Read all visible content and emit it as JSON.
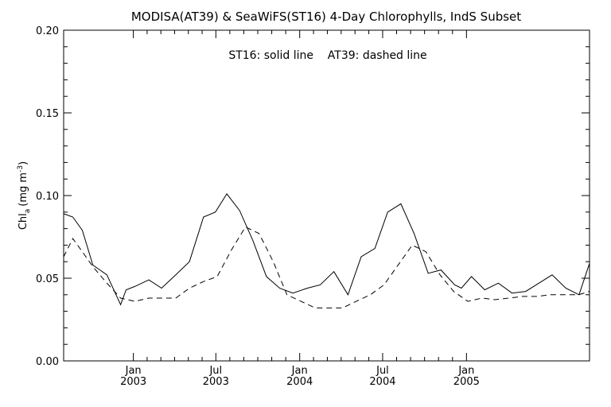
{
  "chart_data": {
    "type": "line",
    "title": "MODISA(AT39) & SeaWiFS(ST16) 4-Day Chlorophylls, IndS Subset",
    "annotation": "ST16: solid line    AT39: dashed line",
    "xlabel": "",
    "ylabel": "Chl",
    "ylabel_subscript": "a",
    "ylabel_units": "(mg m",
    "ylabel_units_sup": "-3",
    "ylabel_units_close": ")",
    "ylim": [
      0.0,
      0.2
    ],
    "yticks": [
      "0.00",
      "0.05",
      "0.10",
      "0.15",
      "0.20"
    ],
    "xlim": [
      "2002-08-01",
      "2005-09-28"
    ],
    "xticks": [
      {
        "date": "2003-01-01",
        "month": "Jan",
        "year": "2003"
      },
      {
        "date": "2003-07-01",
        "month": "Jul",
        "year": "2003"
      },
      {
        "date": "2004-01-01",
        "month": "Jan",
        "year": "2004"
      },
      {
        "date": "2004-07-01",
        "month": "Jul",
        "year": "2004"
      },
      {
        "date": "2005-01-01",
        "month": "Jan",
        "year": "2005"
      }
    ],
    "grid": false,
    "series": [
      {
        "name": "ST16",
        "style": "solid",
        "color": "#000000",
        "x": [
          "2002-08-01",
          "2002-08-21",
          "2002-09-11",
          "2002-10-04",
          "2002-11-04",
          "2002-12-04",
          "2002-12-16",
          "2003-01-04",
          "2003-02-04",
          "2003-03-04",
          "2003-04-04",
          "2003-05-04",
          "2003-06-04",
          "2003-06-30",
          "2003-07-25",
          "2003-08-22",
          "2003-09-20",
          "2003-10-20",
          "2003-11-18",
          "2003-12-17",
          "2004-01-18",
          "2004-02-15",
          "2004-03-16",
          "2004-04-16",
          "2004-05-15",
          "2004-06-14",
          "2004-07-12",
          "2004-08-10",
          "2004-09-08",
          "2004-10-09",
          "2004-11-06",
          "2004-12-06",
          "2004-12-21",
          "2005-01-12",
          "2005-02-10",
          "2005-03-12",
          "2005-04-11",
          "2005-05-11",
          "2005-06-09",
          "2005-07-08",
          "2005-08-07",
          "2005-09-05",
          "2005-09-28"
        ],
        "y": [
          0.089,
          0.087,
          0.079,
          0.058,
          0.052,
          0.034,
          0.043,
          0.045,
          0.049,
          0.044,
          0.052,
          0.06,
          0.087,
          0.09,
          0.101,
          0.091,
          0.073,
          0.051,
          0.044,
          0.041,
          0.044,
          0.046,
          0.054,
          0.04,
          0.063,
          0.068,
          0.09,
          0.095,
          0.077,
          0.053,
          0.055,
          0.046,
          0.044,
          0.051,
          0.043,
          0.047,
          0.041,
          0.042,
          0.047,
          0.052,
          0.044,
          0.04,
          0.059
        ]
      },
      {
        "name": "AT39",
        "style": "dashed",
        "color": "#000000",
        "x": [
          "2002-08-01",
          "2002-08-21",
          "2002-09-11",
          "2002-10-04",
          "2002-11-04",
          "2002-12-04",
          "2003-01-04",
          "2003-02-04",
          "2003-03-04",
          "2003-04-04",
          "2003-05-04",
          "2003-06-04",
          "2003-07-04",
          "2003-08-04",
          "2003-09-04",
          "2003-10-04",
          "2003-11-04",
          "2003-12-04",
          "2004-01-04",
          "2004-02-04",
          "2004-03-04",
          "2004-04-04",
          "2004-05-04",
          "2004-06-04",
          "2004-07-04",
          "2004-08-04",
          "2004-09-04",
          "2004-10-04",
          "2004-11-04",
          "2004-12-04",
          "2005-01-04",
          "2005-02-04",
          "2005-03-04",
          "2005-04-04",
          "2005-05-04",
          "2005-06-04",
          "2005-07-04",
          "2005-08-04",
          "2005-09-04",
          "2005-09-28"
        ],
        "y": [
          0.063,
          0.074,
          0.066,
          0.057,
          0.047,
          0.038,
          0.036,
          0.038,
          0.038,
          0.038,
          0.044,
          0.048,
          0.051,
          0.067,
          0.081,
          0.077,
          0.06,
          0.04,
          0.036,
          0.032,
          0.032,
          0.032,
          0.036,
          0.04,
          0.046,
          0.058,
          0.07,
          0.066,
          0.052,
          0.042,
          0.036,
          0.038,
          0.037,
          0.038,
          0.039,
          0.039,
          0.04,
          0.04,
          0.04,
          0.042
        ]
      }
    ]
  }
}
